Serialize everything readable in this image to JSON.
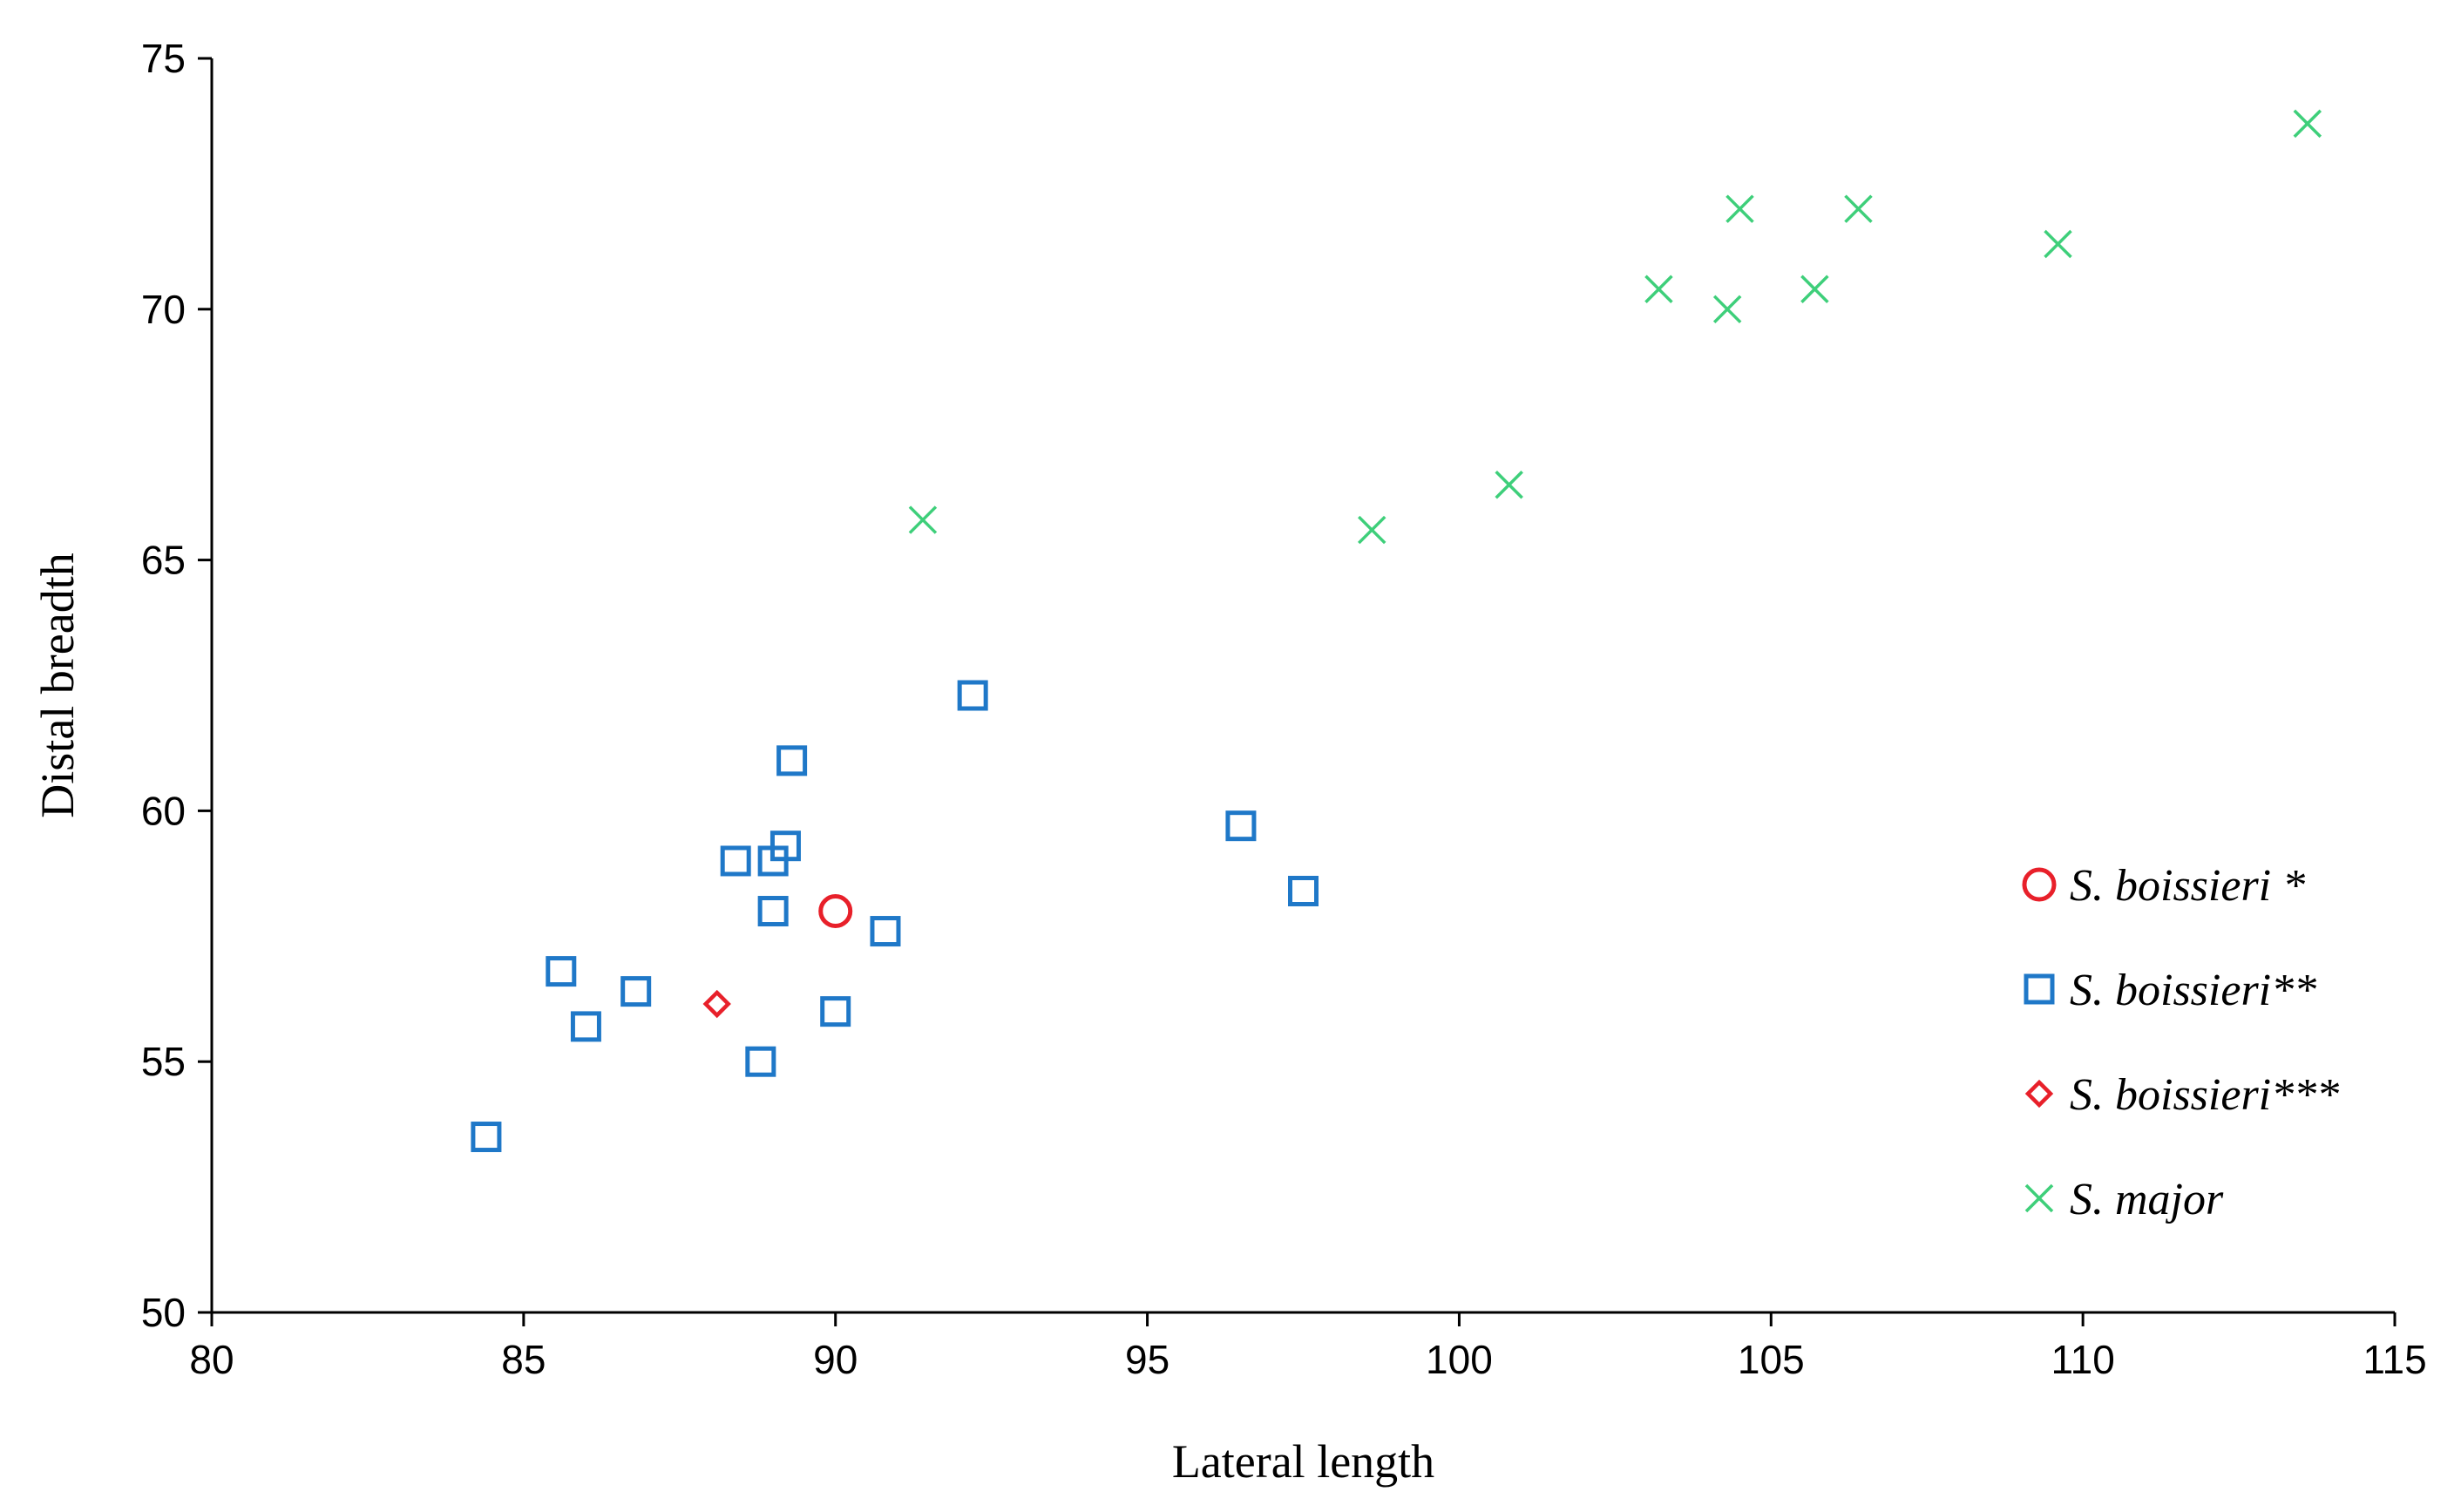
{
  "chart_data": {
    "type": "scatter",
    "title": "",
    "xlabel": "Lateral length",
    "ylabel": "Distal breadth",
    "xlim": [
      80,
      115
    ],
    "ylim": [
      50,
      75
    ],
    "xticks": [
      80,
      85,
      90,
      95,
      100,
      105,
      110,
      115
    ],
    "yticks": [
      50,
      55,
      60,
      65,
      70,
      75
    ],
    "grid": false,
    "legend_position": "right",
    "series": [
      {
        "name": "S. boissieri *",
        "marker": "circle",
        "color": "#e8202a",
        "points": [
          [
            90.0,
            58.0
          ]
        ]
      },
      {
        "name": "S. boissieri**",
        "marker": "square",
        "color": "#1f78c8",
        "points": [
          [
            84.4,
            53.5
          ],
          [
            85.6,
            56.8
          ],
          [
            86.0,
            55.7
          ],
          [
            86.8,
            56.4
          ],
          [
            88.4,
            59.0
          ],
          [
            88.8,
            55.0
          ],
          [
            89.0,
            58.0
          ],
          [
            89.0,
            59.0
          ],
          [
            89.2,
            59.3
          ],
          [
            89.3,
            61.0
          ],
          [
            90.0,
            56.0
          ],
          [
            90.8,
            57.6
          ],
          [
            92.2,
            62.3
          ],
          [
            96.5,
            59.7
          ],
          [
            97.5,
            58.4
          ]
        ]
      },
      {
        "name": "S. boissieri***",
        "marker": "diamond",
        "color": "#e8202a",
        "points": [
          [
            88.1,
            56.15
          ]
        ]
      },
      {
        "name": "S. major",
        "marker": "x",
        "color": "#3ecf7a",
        "points": [
          [
            91.4,
            65.8
          ],
          [
            98.6,
            65.6
          ],
          [
            100.8,
            66.5
          ],
          [
            103.2,
            70.4
          ],
          [
            104.3,
            70.0
          ],
          [
            104.5,
            72.0
          ],
          [
            105.7,
            70.4
          ],
          [
            106.4,
            72.0
          ],
          [
            109.6,
            71.3
          ],
          [
            113.6,
            73.7
          ]
        ]
      }
    ]
  }
}
